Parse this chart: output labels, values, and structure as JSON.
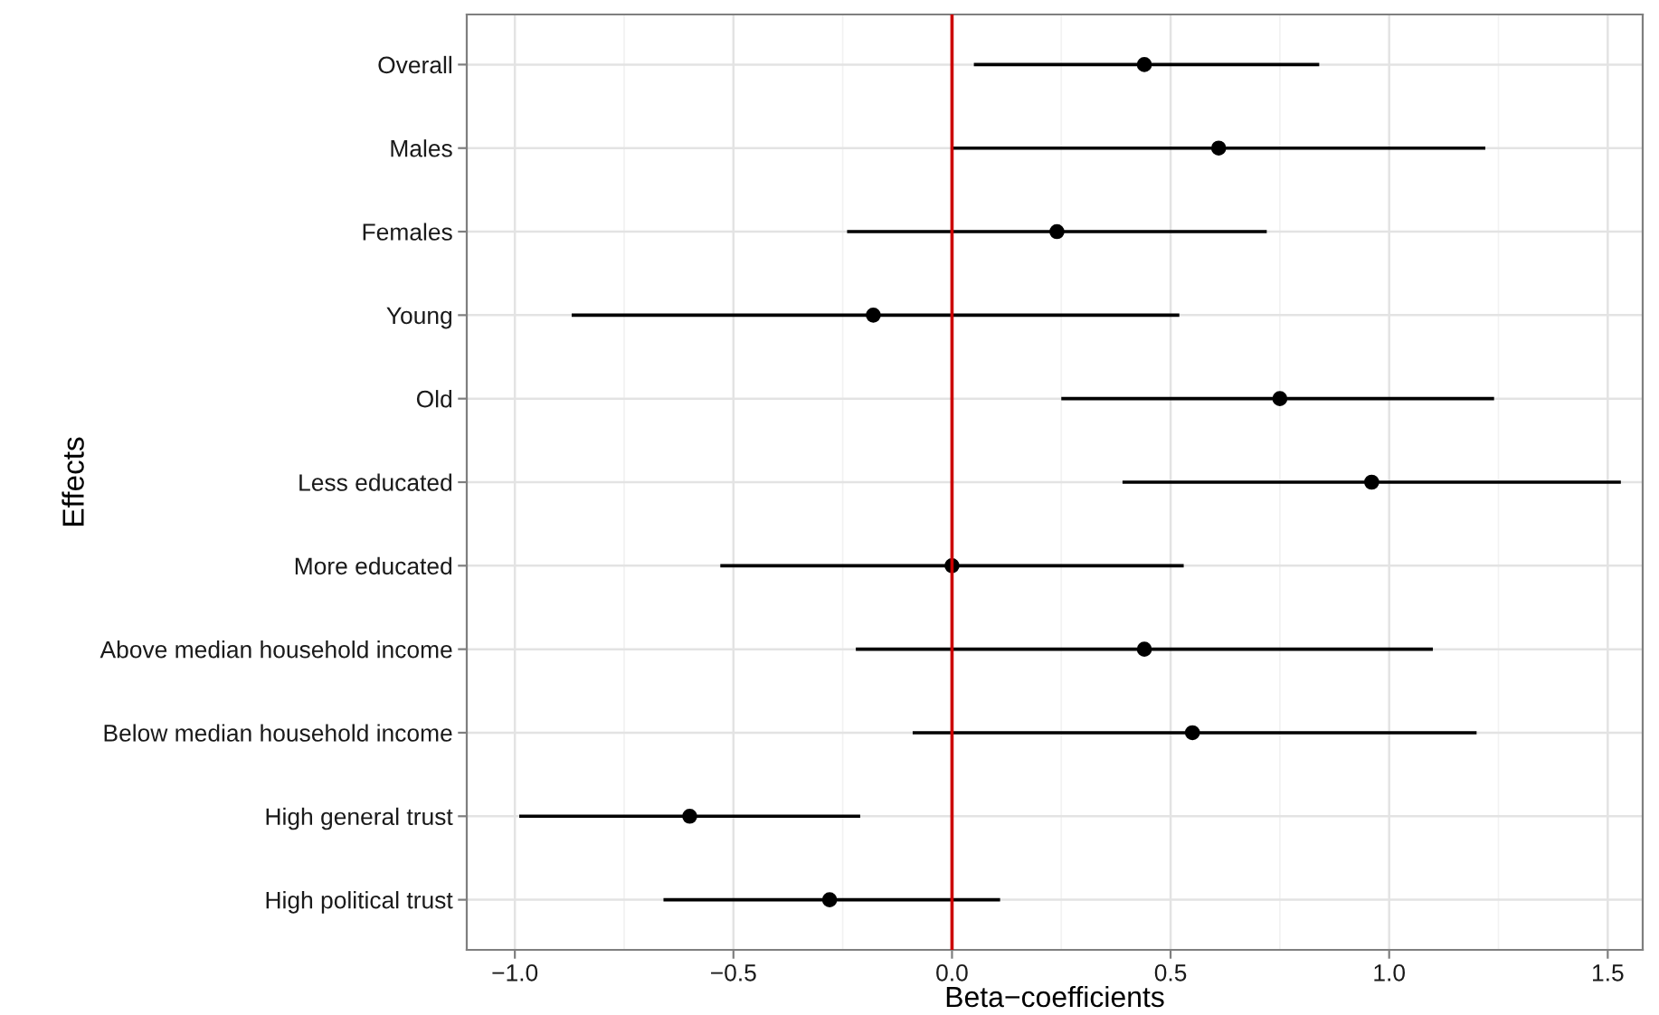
{
  "chart_data": {
    "type": "scatter",
    "orientation": "horizontal",
    "xlabel": "Beta−coefficients",
    "ylabel": "Effects",
    "categories": [
      "Overall",
      "Males",
      "Females",
      "Young",
      "Old",
      "Less educated",
      "More educated",
      "Above median household income",
      "Below median household income",
      "High general trust",
      "High political trust"
    ],
    "series": [
      {
        "color": "#000000",
        "values": [
          0.44,
          0.61,
          0.24,
          -0.18,
          0.75,
          0.96,
          0.0,
          0.44,
          0.55,
          -0.6,
          -0.28
        ],
        "errors": [
          [
            0.05,
            0.84
          ],
          [
            0.0,
            1.22
          ],
          [
            -0.24,
            0.72
          ],
          [
            -0.87,
            0.52
          ],
          [
            0.25,
            1.24
          ],
          [
            0.39,
            1.53
          ],
          [
            -0.53,
            0.53
          ],
          [
            -0.22,
            1.1
          ],
          [
            -0.09,
            1.2
          ],
          [
            -0.99,
            -0.21
          ],
          [
            -0.66,
            0.11
          ]
        ]
      }
    ],
    "xlim": [
      -1.11,
      1.58
    ],
    "xticks": [
      {
        "value": -1.0,
        "label": "−1.0"
      },
      {
        "value": -0.5,
        "label": "−0.5"
      },
      {
        "value": 0.0,
        "label": "0.0"
      },
      0.5,
      {
        "value": 1.0,
        "label": "1.0"
      },
      1.5
    ],
    "ref_lines": [
      {
        "axis": "x",
        "value": 0,
        "color": "#cc0000"
      }
    ],
    "grid": true,
    "marker": "circle"
  }
}
